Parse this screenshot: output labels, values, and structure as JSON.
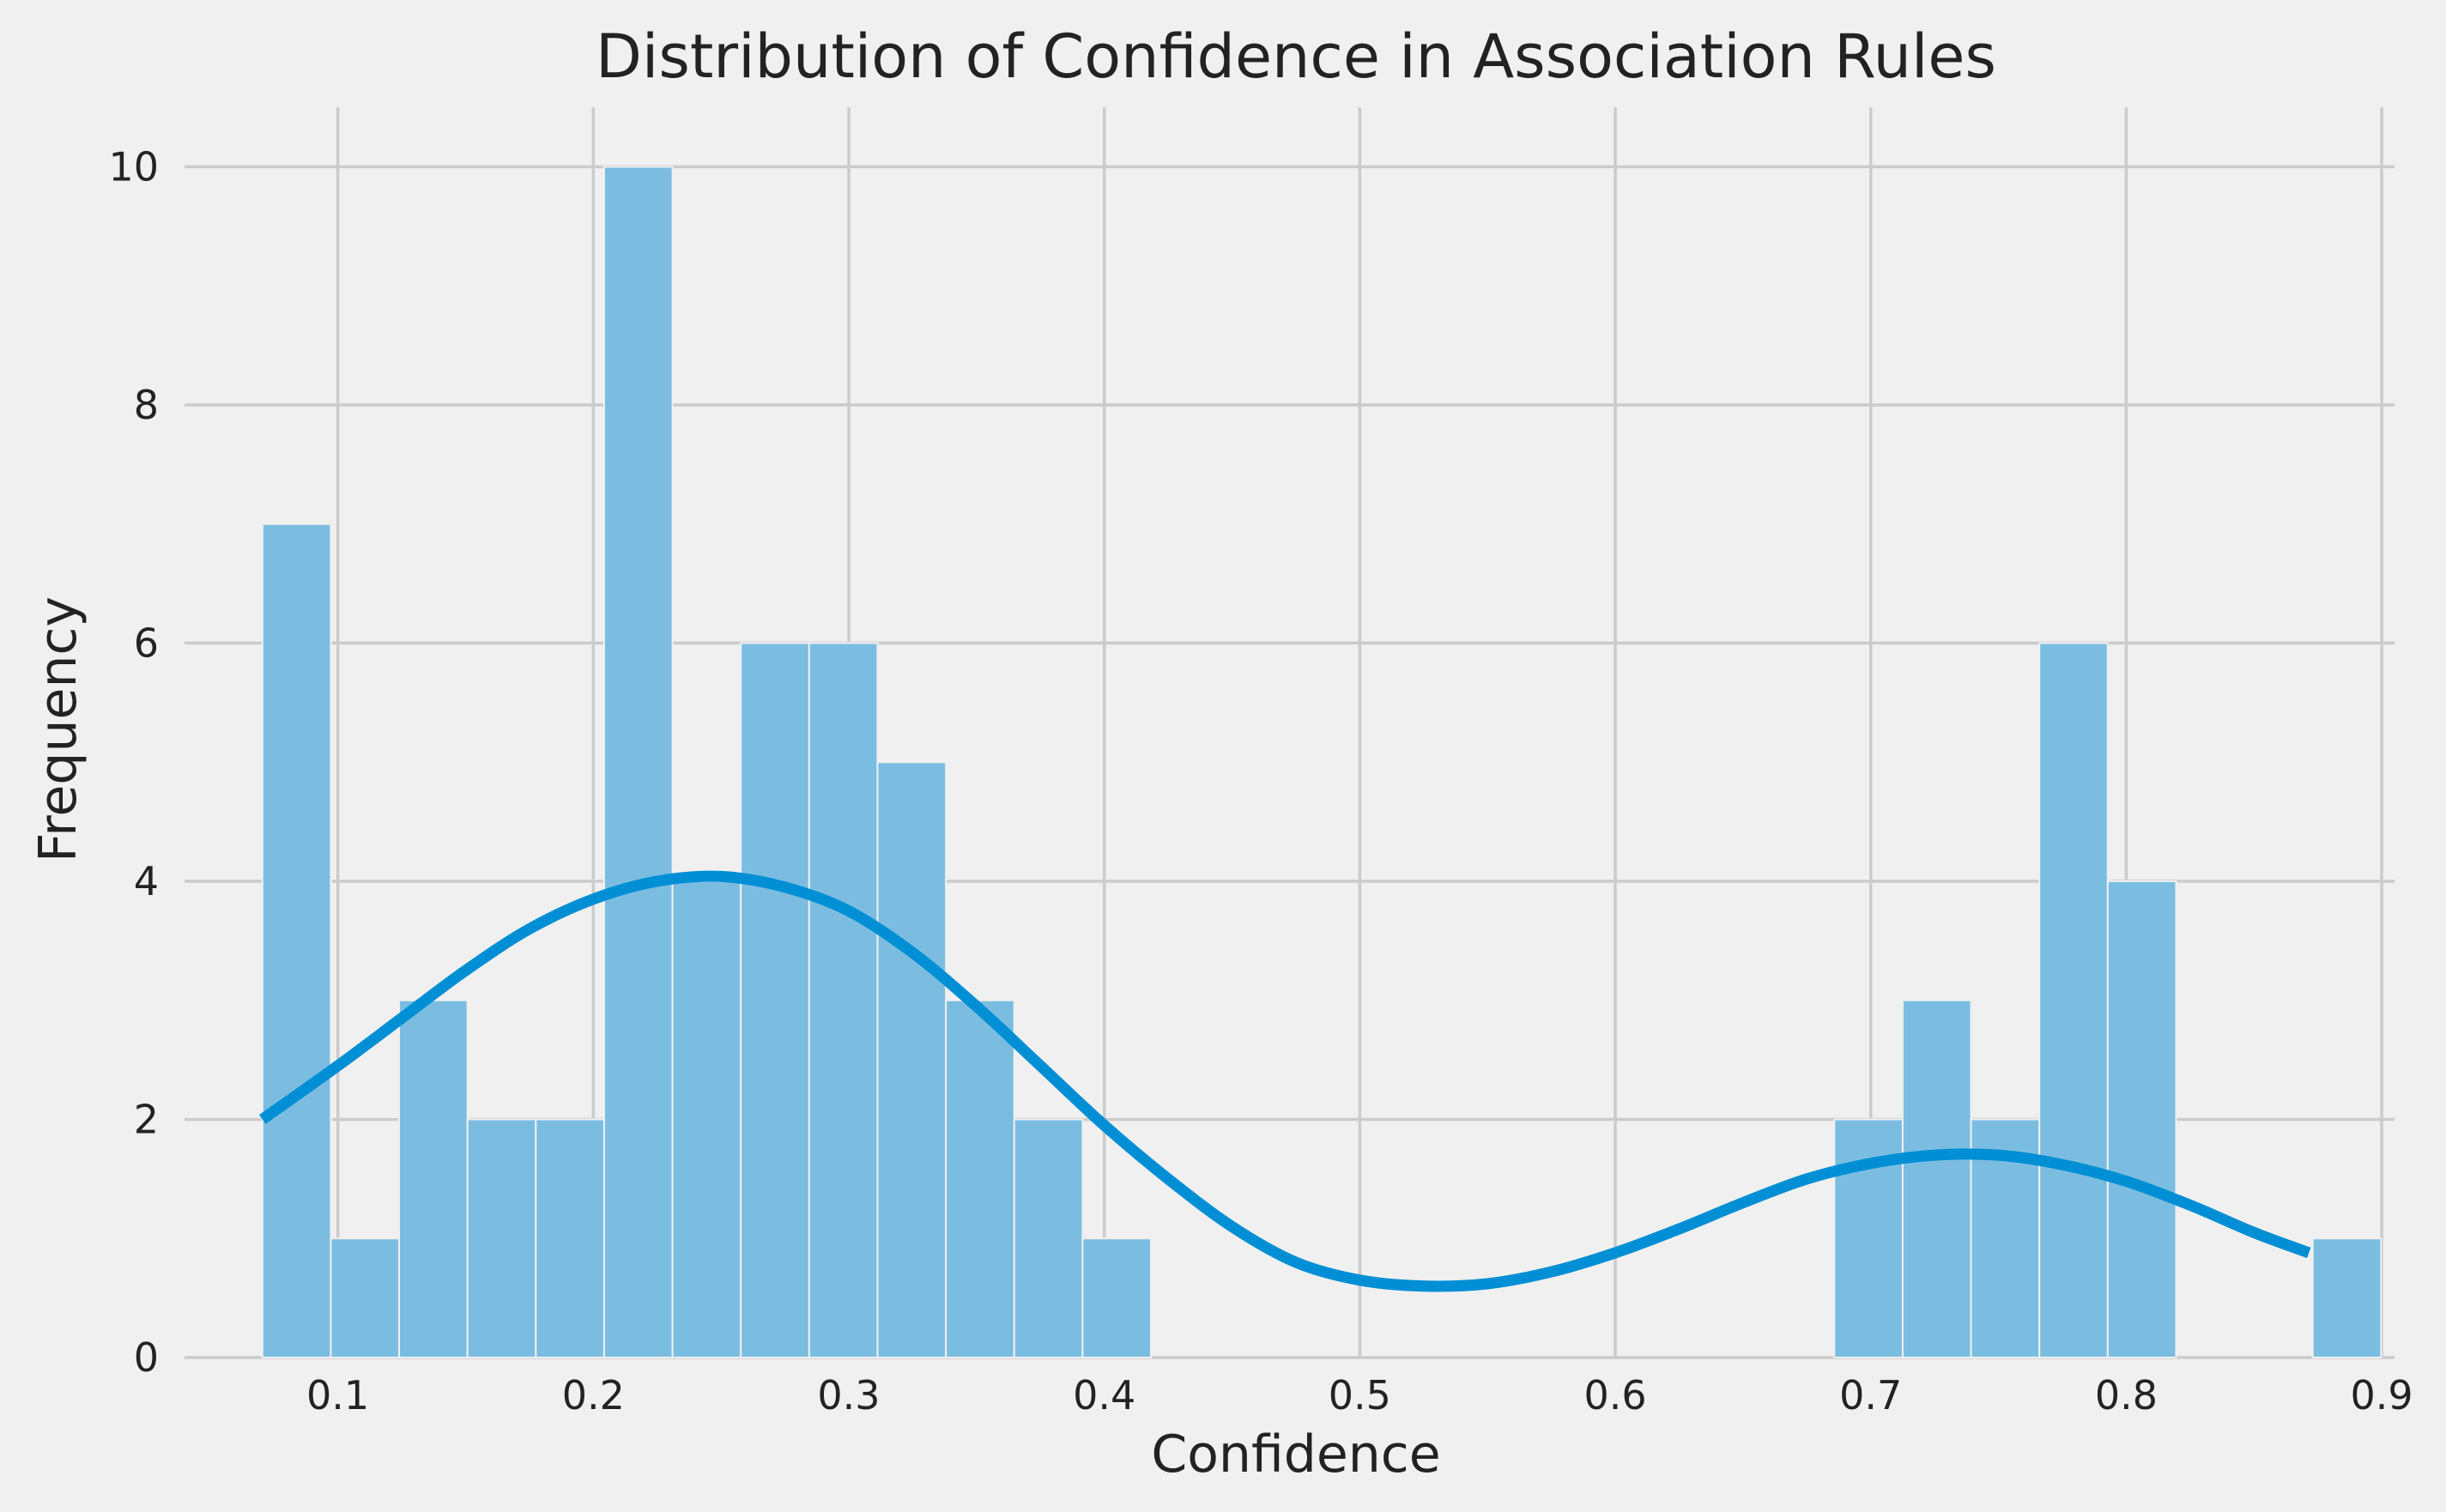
{
  "chart_data": {
    "type": "bar",
    "title": "Distribution of Confidence in Association Rules",
    "xlabel": "Confidence",
    "ylabel": "Frequency",
    "xlim": [
      0.04,
      0.905
    ],
    "ylim": [
      0,
      10.5
    ],
    "xticks": [
      0.1,
      0.2,
      0.3,
      0.4,
      0.5,
      0.6,
      0.7,
      0.8,
      0.9
    ],
    "xtick_labels": [
      "0.1",
      "0.2",
      "0.3",
      "0.4",
      "0.5",
      "0.6",
      "0.7",
      "0.8",
      "0.9"
    ],
    "yticks": [
      0,
      2,
      4,
      6,
      8,
      10
    ],
    "ytick_labels": [
      "0",
      "2",
      "4",
      "6",
      "8",
      "10"
    ],
    "grid": true,
    "bin_start": 0.0705,
    "bin_width": 0.02675,
    "bin_counts": [
      7,
      1,
      3,
      2,
      2,
      10,
      4,
      6,
      6,
      5,
      3,
      2,
      1,
      0,
      0,
      0,
      0,
      0,
      0,
      0,
      0,
      0,
      0,
      2,
      3,
      2,
      6,
      4,
      0,
      0,
      1
    ],
    "kde_curve": {
      "x": [
        0.0705,
        0.1,
        0.125,
        0.15,
        0.175,
        0.2,
        0.225,
        0.25,
        0.275,
        0.3,
        0.325,
        0.35,
        0.375,
        0.4,
        0.425,
        0.45,
        0.475,
        0.5,
        0.525,
        0.55,
        0.575,
        0.6,
        0.625,
        0.65,
        0.675,
        0.7,
        0.725,
        0.75,
        0.775,
        0.8,
        0.825,
        0.85,
        0.8715
      ],
      "y": [
        2.0,
        2.45,
        2.85,
        3.25,
        3.6,
        3.85,
        4.0,
        4.04,
        3.95,
        3.75,
        3.4,
        2.95,
        2.45,
        1.95,
        1.5,
        1.1,
        0.8,
        0.65,
        0.6,
        0.62,
        0.72,
        0.88,
        1.08,
        1.3,
        1.5,
        1.63,
        1.7,
        1.7,
        1.62,
        1.48,
        1.28,
        1.05,
        0.88
      ]
    },
    "colors": {
      "bars": "#7bbde1",
      "kde_line": "#008fd5",
      "background": "#f0f0f0",
      "grid": "#cbcbcb"
    }
  }
}
